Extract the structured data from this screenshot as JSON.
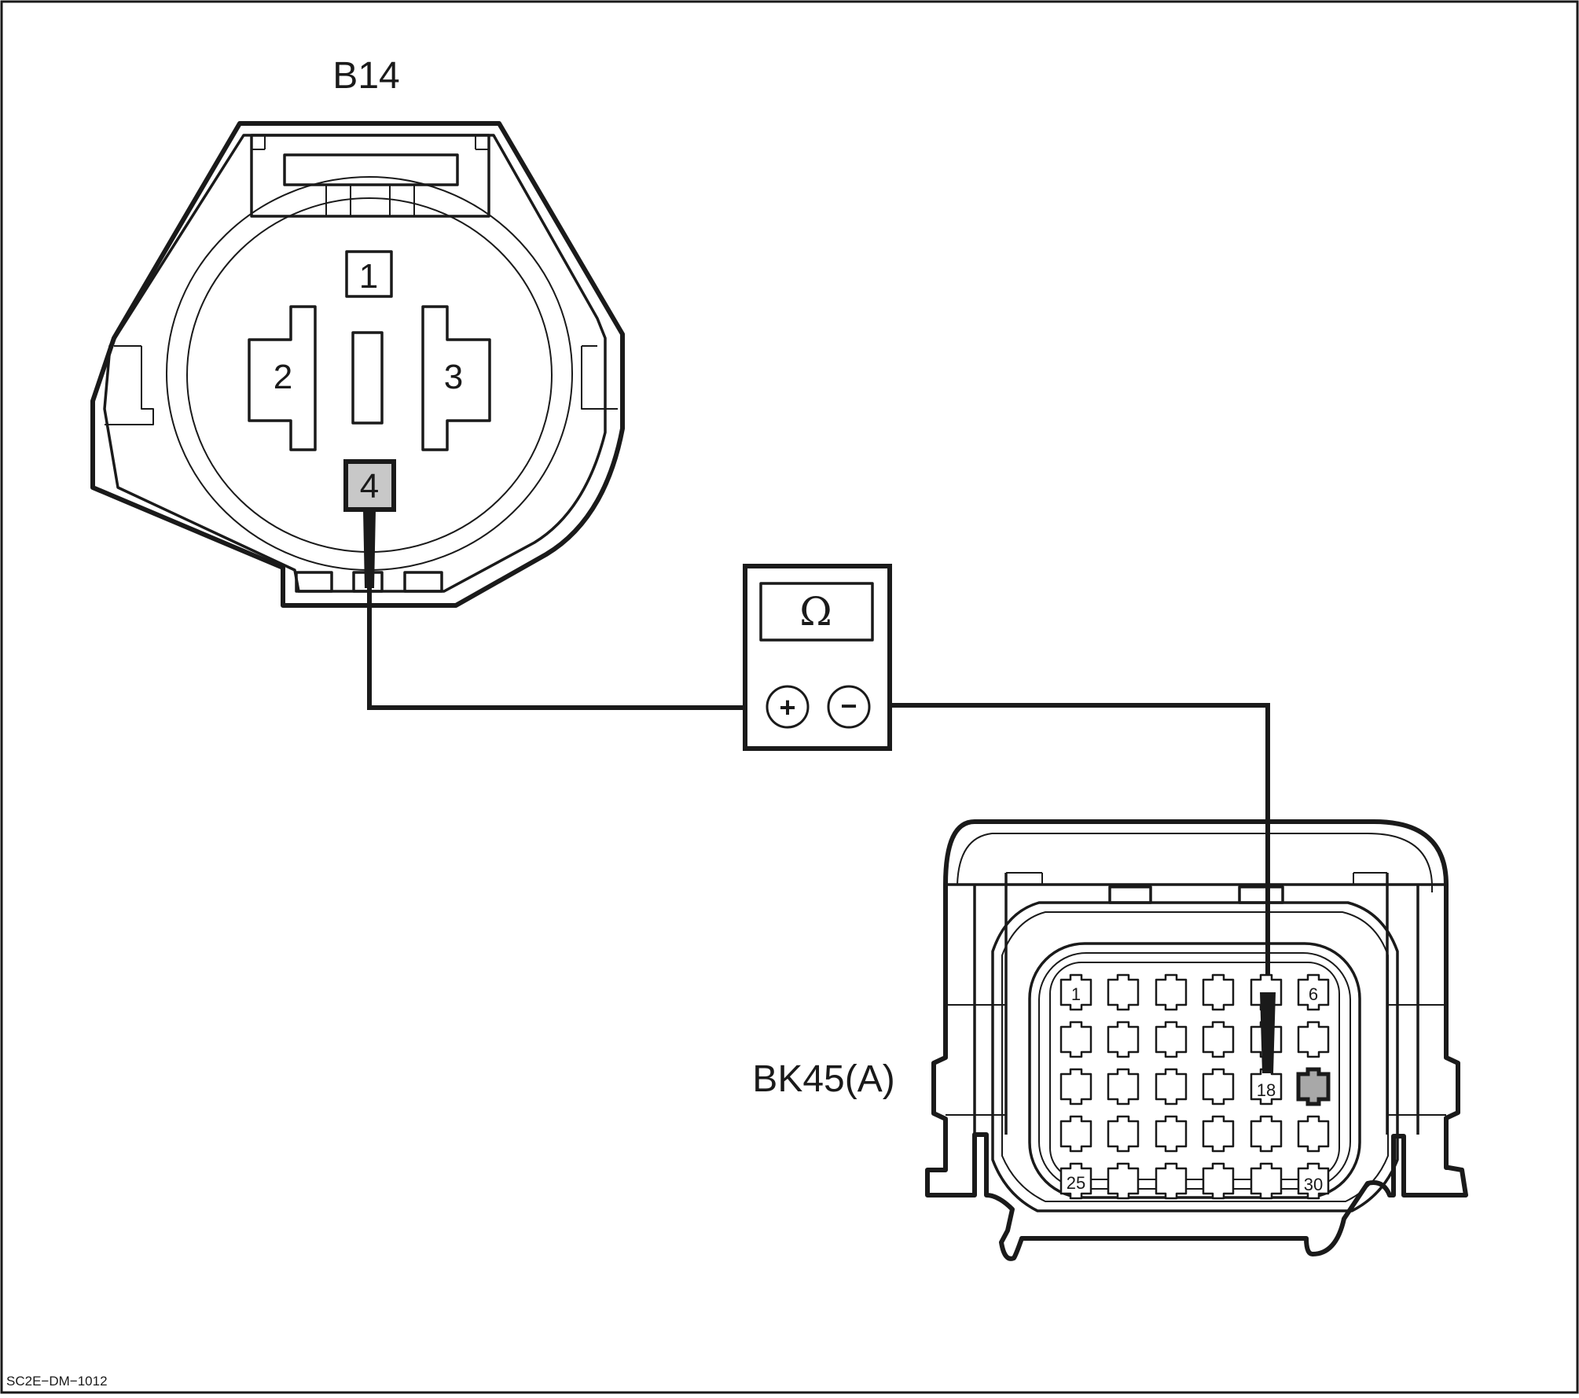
{
  "connector_b14": {
    "label": "B14",
    "pins": [
      "1",
      "2",
      "3",
      "4"
    ],
    "probed_pin": "4",
    "probed_fill": "#c8c8c8"
  },
  "meter": {
    "symbol": "Ω",
    "plus": "+",
    "minus": "−"
  },
  "connector_bk45": {
    "label": "BK45(A)",
    "pin_labels": {
      "first": "1",
      "sixth": "6",
      "probed": "18",
      "row5_first": "25",
      "last": "30"
    },
    "probed_fill": "#a8a8a8"
  },
  "figure_code": "SC2E−DM−1012"
}
